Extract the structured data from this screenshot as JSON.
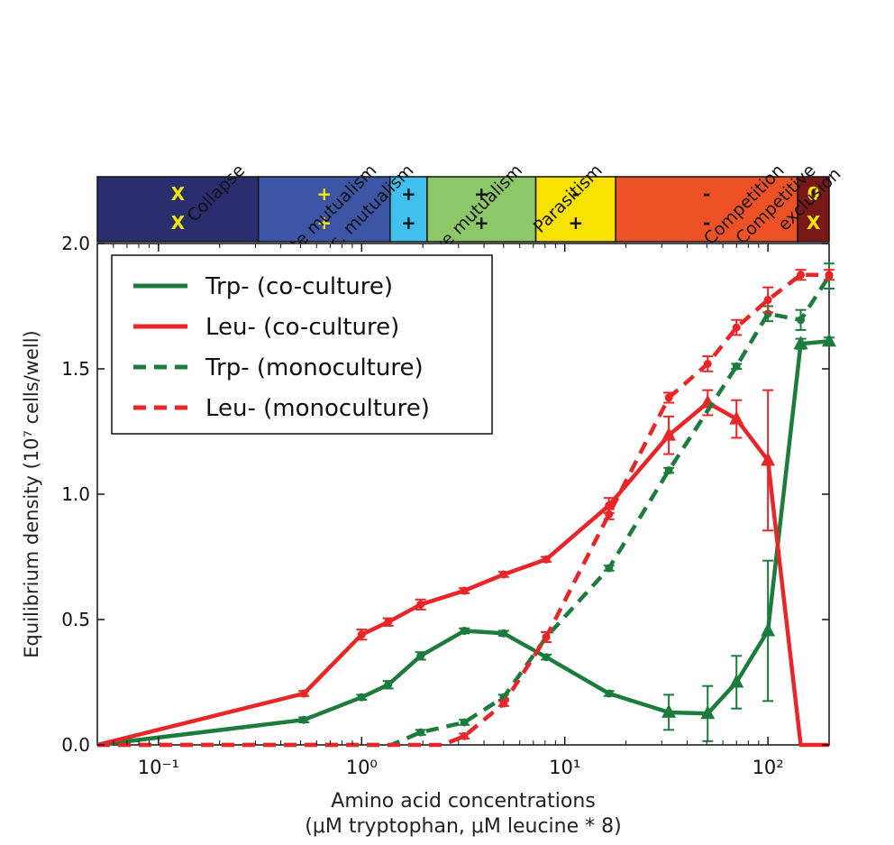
{
  "chart_data": {
    "type": "line",
    "x_scale": "log",
    "xlim": [
      0.05,
      200
    ],
    "ylim": [
      0,
      2.0
    ],
    "xlabel_line1": "Amino acid concentrations",
    "xlabel_line2": "(μM tryptophan, μM leucine * 8)",
    "ylabel": "Equilibrium density (10⁷ cells/well)",
    "x_ticks": [
      {
        "value": 0.1,
        "label": "10⁻¹"
      },
      {
        "value": 1,
        "label": "10⁰"
      },
      {
        "value": 10,
        "label": "10¹"
      },
      {
        "value": 100,
        "label": "10²"
      }
    ],
    "y_ticks": [
      {
        "value": 0.0,
        "label": "0.0"
      },
      {
        "value": 0.5,
        "label": "0.5"
      },
      {
        "value": 1.0,
        "label": "1.0"
      },
      {
        "value": 1.5,
        "label": "1.5"
      },
      {
        "value": 2.0,
        "label": "2.0"
      }
    ],
    "legend_position": "upper-left",
    "series": [
      {
        "name": "Trp- (co-culture)",
        "color": "#1b7c3d",
        "style": "solid",
        "points": [
          {
            "x": 0.05,
            "y": 0,
            "m": "none"
          },
          {
            "x": 0.52,
            "y": 0.1,
            "m": "circle",
            "e": 0.01
          },
          {
            "x": 1.0,
            "y": 0.19,
            "m": "circle",
            "e": 0.01
          },
          {
            "x": 1.35,
            "y": 0.24,
            "m": "circle",
            "e": 0.015
          },
          {
            "x": 1.95,
            "y": 0.355,
            "m": "circle",
            "e": 0.015
          },
          {
            "x": 3.2,
            "y": 0.455,
            "m": "circle",
            "e": 0.01
          },
          {
            "x": 5.0,
            "y": 0.445,
            "m": "circle",
            "e": 0.01
          },
          {
            "x": 8.1,
            "y": 0.35,
            "m": "circle",
            "e": 0.01
          },
          {
            "x": 16.5,
            "y": 0.205,
            "m": "circle",
            "e": 0.01
          },
          {
            "x": 32.5,
            "y": 0.13,
            "m": "triangle",
            "e": 0.07
          },
          {
            "x": 50.5,
            "y": 0.125,
            "m": "triangle",
            "e": 0.11
          },
          {
            "x": 70,
            "y": 0.25,
            "m": "triangle",
            "e": 0.105
          },
          {
            "x": 100,
            "y": 0.455,
            "m": "triangle",
            "e": 0.28
          },
          {
            "x": 145,
            "y": 1.6,
            "m": "triangle",
            "e": 0.02
          },
          {
            "x": 200,
            "y": 1.61,
            "m": "triangle",
            "e": 0.015
          }
        ]
      },
      {
        "name": "Leu- (co-culture)",
        "color": "#e8262a",
        "style": "solid",
        "points": [
          {
            "x": 0.05,
            "y": 0,
            "m": "none"
          },
          {
            "x": 0.52,
            "y": 0.205,
            "m": "circle",
            "e": 0.01
          },
          {
            "x": 1.0,
            "y": 0.44,
            "m": "circle",
            "e": 0.02
          },
          {
            "x": 1.35,
            "y": 0.49,
            "m": "circle",
            "e": 0.015
          },
          {
            "x": 1.95,
            "y": 0.56,
            "m": "circle",
            "e": 0.02
          },
          {
            "x": 3.2,
            "y": 0.615,
            "m": "circle",
            "e": 0.01
          },
          {
            "x": 5.0,
            "y": 0.68,
            "m": "circle",
            "e": 0.01
          },
          {
            "x": 8.1,
            "y": 0.74,
            "m": "circle",
            "e": 0.01
          },
          {
            "x": 16.5,
            "y": 0.955,
            "m": "circle",
            "e": 0.03
          },
          {
            "x": 32.5,
            "y": 1.235,
            "m": "triangle",
            "e": 0.075
          },
          {
            "x": 50.5,
            "y": 1.365,
            "m": "triangle",
            "e": 0.05
          },
          {
            "x": 70,
            "y": 1.3,
            "m": "triangle",
            "e": 0.075
          },
          {
            "x": 100,
            "y": 1.135,
            "m": "triangle",
            "e": 0.28
          },
          {
            "x": 145,
            "y": 0,
            "m": "none"
          },
          {
            "x": 200,
            "y": 0,
            "m": "none"
          }
        ]
      },
      {
        "name": "Trp- (monoculture)",
        "color": "#1b7c3d",
        "style": "dashed",
        "points": [
          {
            "x": 0.05,
            "y": 0,
            "m": "none"
          },
          {
            "x": 1.4,
            "y": 0.0,
            "m": "none"
          },
          {
            "x": 1.95,
            "y": 0.05,
            "m": "circle",
            "e": 0.01
          },
          {
            "x": 3.2,
            "y": 0.09,
            "m": "circle",
            "e": 0.01
          },
          {
            "x": 5.0,
            "y": 0.19,
            "m": "circle",
            "e": 0.01
          },
          {
            "x": 8.1,
            "y": 0.43,
            "m": "circle",
            "e": 0.02
          },
          {
            "x": 16.5,
            "y": 0.705,
            "m": "circle",
            "e": 0.01
          },
          {
            "x": 32.5,
            "y": 1.095,
            "m": "circle",
            "e": 0.01
          },
          {
            "x": 70,
            "y": 1.51,
            "m": "circle",
            "e": 0.01
          },
          {
            "x": 100,
            "y": 1.72,
            "m": "circle",
            "e": 0.03
          },
          {
            "x": 145,
            "y": 1.695,
            "m": "circle",
            "e": 0.04
          },
          {
            "x": 200,
            "y": 1.87,
            "m": "circle",
            "e": 0.05
          }
        ]
      },
      {
        "name": "Leu- (monoculture)",
        "color": "#e8262a",
        "style": "dashed",
        "points": [
          {
            "x": 0.05,
            "y": 0,
            "m": "none"
          },
          {
            "x": 2.5,
            "y": 0.0,
            "m": "none"
          },
          {
            "x": 3.2,
            "y": 0.035,
            "m": "circle",
            "e": 0.01
          },
          {
            "x": 5.0,
            "y": 0.165,
            "m": "circle",
            "e": 0.01
          },
          {
            "x": 8.1,
            "y": 0.43,
            "m": "circle",
            "e": 0.02
          },
          {
            "x": 16.5,
            "y": 0.92,
            "m": "circle",
            "e": 0.02
          },
          {
            "x": 32.5,
            "y": 1.385,
            "m": "circle",
            "e": 0.02
          },
          {
            "x": 50.5,
            "y": 1.52,
            "m": "circle",
            "e": 0.03
          },
          {
            "x": 70,
            "y": 1.665,
            "m": "circle",
            "e": 0.03
          },
          {
            "x": 100,
            "y": 1.775,
            "m": "circle",
            "e": 0.05
          },
          {
            "x": 145,
            "y": 1.875,
            "m": "circle",
            "e": 0.02
          },
          {
            "x": 200,
            "y": 1.875,
            "m": "circle",
            "e": 0.02
          }
        ]
      }
    ],
    "regions": [
      {
        "label": "Collapse",
        "label2": "",
        "from": 0.05,
        "to": 0.31,
        "color": "#2a2e6e",
        "sym_top": "X",
        "sym_bottom": "X",
        "sym_color": "#f5e600"
      },
      {
        "label": "Obligate mutualism",
        "label2": "",
        "from": 0.31,
        "to": 1.38,
        "color": "#3c55a5",
        "sym_top": "+",
        "sym_bottom": "+",
        "sym_color": "#f5e600"
      },
      {
        "label": "Obl./fac. mutualism",
        "label2": "",
        "from": 1.38,
        "to": 2.1,
        "color": "#41c0ee",
        "sym_top": "+",
        "sym_bottom": "+",
        "sym_color": "#111111"
      },
      {
        "label": "Facultative mutualism",
        "label2": "",
        "from": 2.1,
        "to": 7.2,
        "color": "#8dc868",
        "sym_top": "+",
        "sym_bottom": "+",
        "sym_color": "#111111"
      },
      {
        "label": "Parasitism",
        "label2": "",
        "from": 7.2,
        "to": 17.8,
        "color": "#f9e200",
        "sym_top": "-",
        "sym_bottom": "+",
        "sym_color": "#111111"
      },
      {
        "label": "Competition",
        "label2": "",
        "from": 17.8,
        "to": 140,
        "color": "#ee5125",
        "sym_top": "-",
        "sym_bottom": "-",
        "sym_color": "#111111"
      },
      {
        "label": "Competitive",
        "label2": "exclusion",
        "from": 140,
        "to": 200,
        "color": "#7a1818",
        "sym_top": "0",
        "sym_bottom": "X",
        "sym_color": "#f5e600"
      }
    ]
  }
}
